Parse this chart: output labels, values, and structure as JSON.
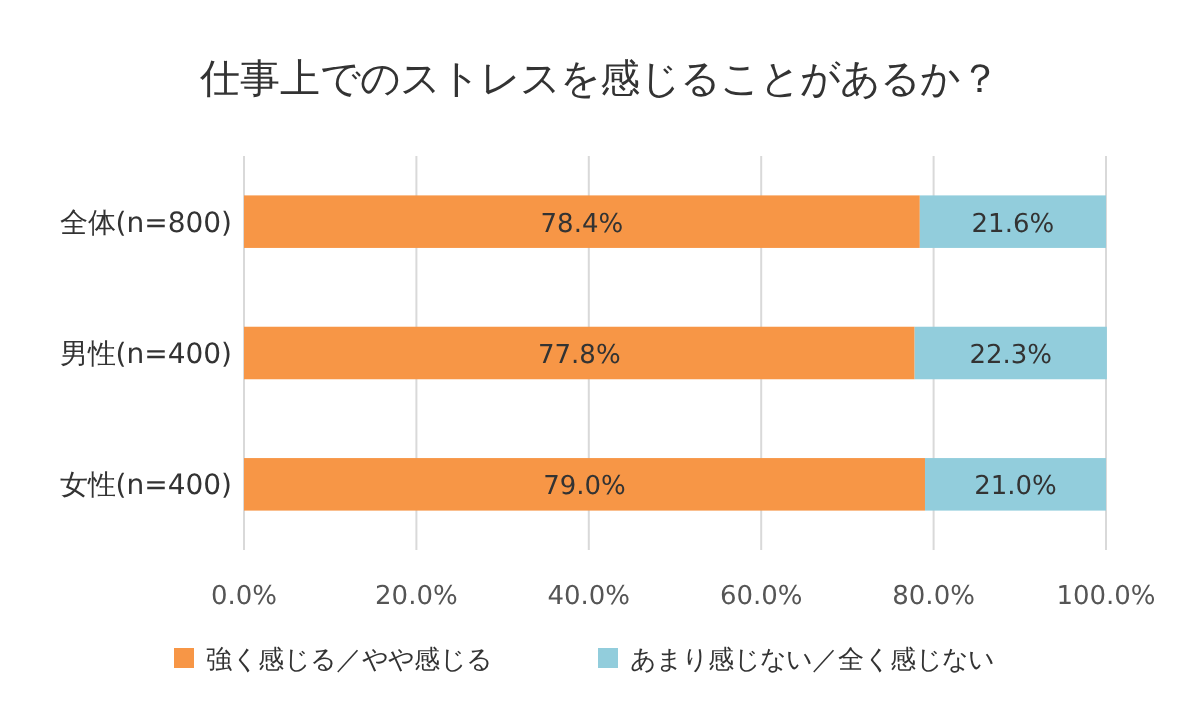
{
  "chart_data": {
    "type": "bar",
    "orientation": "horizontal",
    "stacked": true,
    "title": "仕事上でのストレスを感じることがあるか？",
    "categories": [
      "全体(n=800)",
      "男性(n=400)",
      "女性(n=400)"
    ],
    "series": [
      {
        "name": "強く感じる／やや感じる",
        "color": "#f79646",
        "values": [
          78.4,
          77.8,
          79.0
        ],
        "value_labels": [
          "78.4%",
          "77.8%",
          "79.0%"
        ]
      },
      {
        "name": "あまり感じない／全く感じない",
        "color": "#92cddc",
        "values": [
          21.6,
          22.3,
          21.0
        ],
        "value_labels": [
          "21.6%",
          "22.3%",
          "21.0%"
        ]
      }
    ],
    "xlim": [
      0,
      100
    ],
    "xticks": [
      {
        "value": 0,
        "label": "0.0%"
      },
      {
        "value": 20,
        "label": "20.0%"
      },
      {
        "value": 40,
        "label": "40.0%"
      },
      {
        "value": 60,
        "label": "60.0%"
      },
      {
        "value": 80,
        "label": "80.0%"
      },
      {
        "value": 100,
        "label": "100.0%"
      }
    ],
    "grid": "x",
    "legend": "bottom"
  }
}
